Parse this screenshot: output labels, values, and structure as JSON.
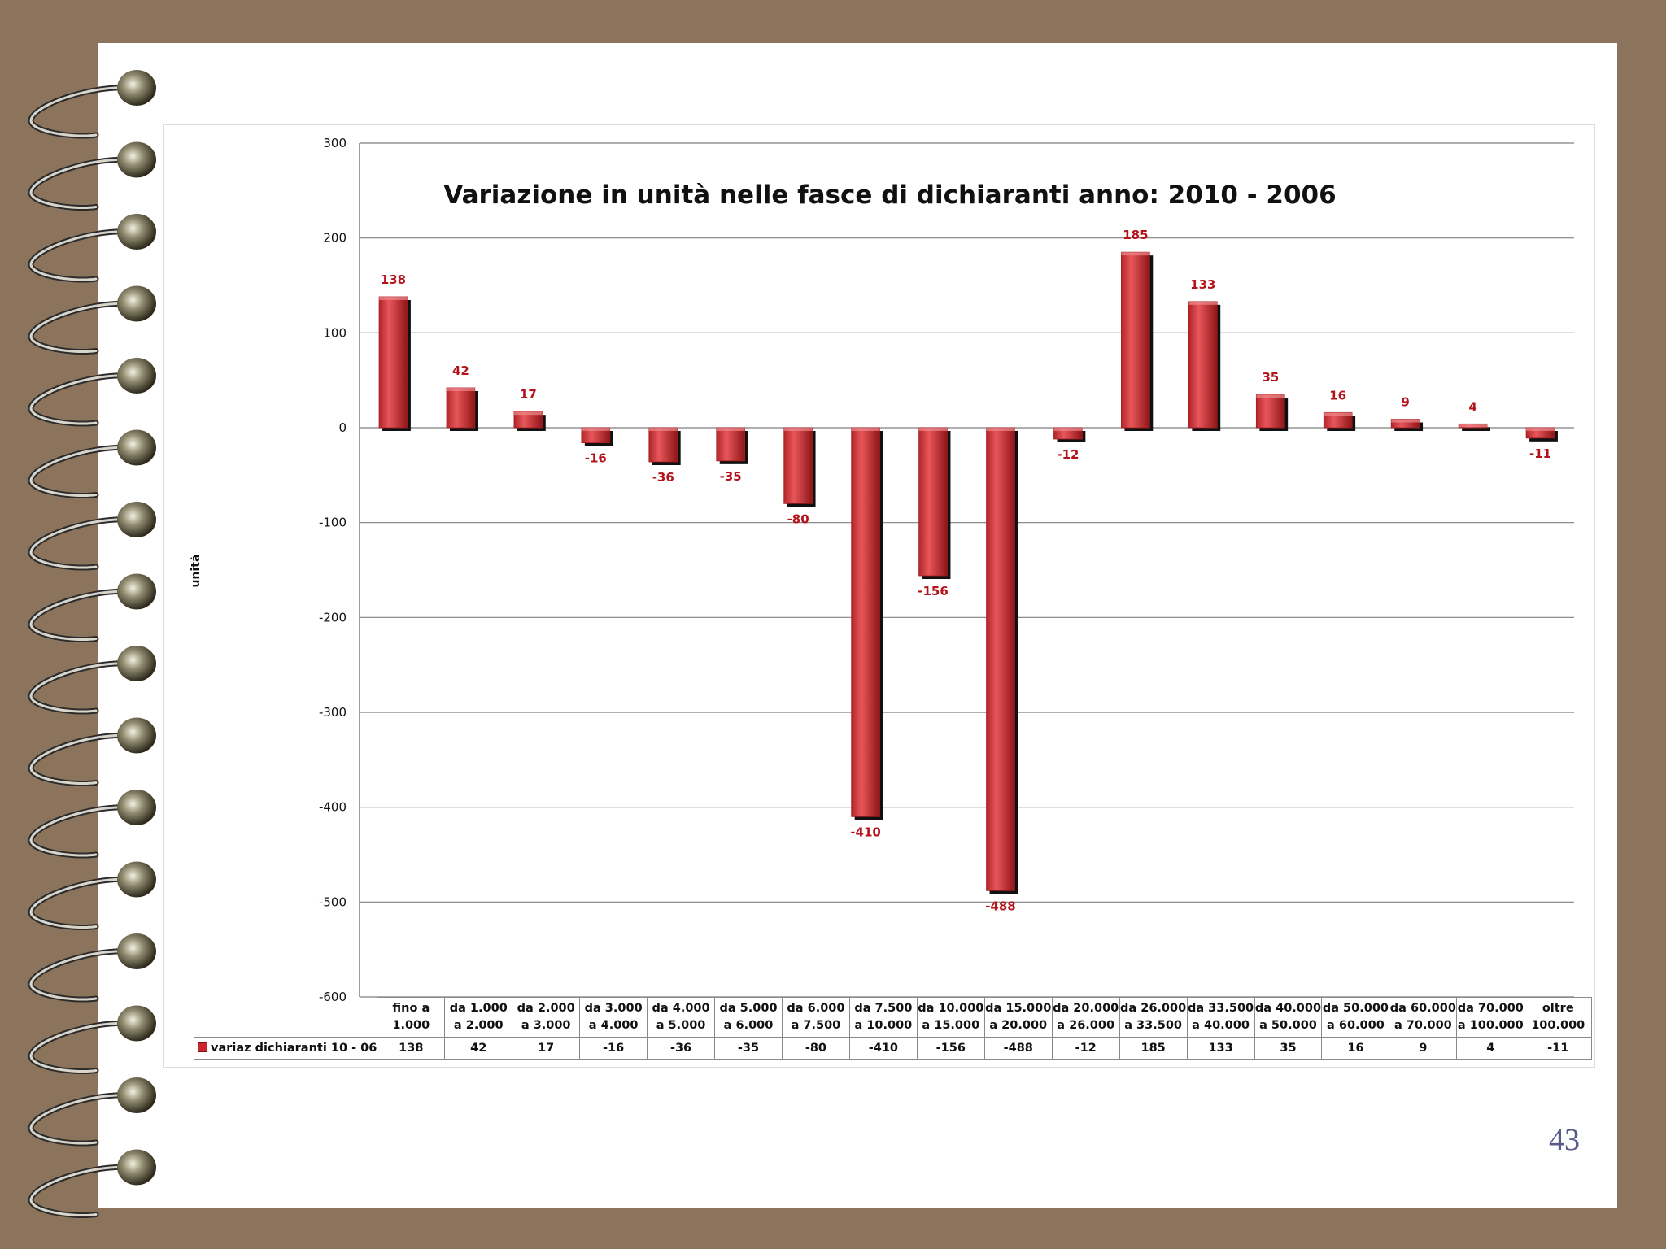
{
  "page": {
    "number": "43"
  },
  "colors": {
    "bar": "#d23a3e",
    "bar_dark": "#8e1518",
    "shadow": "#111111",
    "label": "#b3141b",
    "grid": "#7f7f7f",
    "frame": "#8c735b"
  },
  "chart_data": {
    "type": "bar",
    "title": "Variazione in unità nelle fasce di dichiaranti anno: 2010 - 2006",
    "ylabel": "unità",
    "xlabel": "",
    "ylim": [
      -600,
      300
    ],
    "yticks": [
      300,
      200,
      100,
      0,
      -100,
      -200,
      -300,
      -400,
      -500,
      -600
    ],
    "grid": true,
    "legend": "data-table-bottom",
    "categories": [
      "fino a 1.000",
      "da 1.000 a 2.000",
      "da 2.000 a 3.000",
      "da 3.000 a 4.000",
      "da 4.000 a 5.000",
      "da 5.000 a 6.000",
      "da 6.000 a 7.500",
      "da 7.500 a 10.000",
      "da 10.000 a 15.000",
      "da 15.000 a 20.000",
      "da 20.000 a 26.000",
      "da 26.000 a 33.500",
      "da 33.500 a 40.000",
      "da 40.000 a 50.000",
      "da 50.000 a 60.000",
      "da 60.000 a 70.000",
      "da 70.000 a 100.000",
      "oltre 100.000"
    ],
    "series": [
      {
        "name": "variaz dichiaranti 10 - 06",
        "values": [
          138,
          42,
          17,
          -16,
          -36,
          -35,
          -80,
          -410,
          -156,
          -488,
          -12,
          185,
          133,
          35,
          16,
          9,
          4,
          -11
        ]
      }
    ]
  }
}
